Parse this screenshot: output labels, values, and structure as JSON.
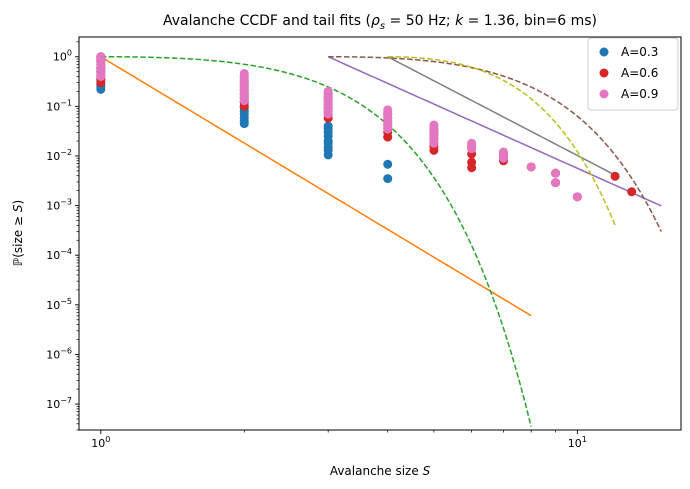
{
  "chart_data": {
    "type": "scatter",
    "title": "Avalanche CCDF and tail fits (ρ_s = 50 Hz; k = 1.36, bin=6 ms)",
    "title_parts": {
      "prefix": "Avalanche CCDF and tail fits (",
      "rho": "ρ",
      "rho_sub": "s",
      "rho_value": " = 50 Hz; ",
      "k": "k",
      "k_value": " = 1.36, bin=6 ms)"
    },
    "xlabel": "Avalanche size S",
    "xlabel_parts": {
      "text": "Avalanche size ",
      "var": "S"
    },
    "ylabel": "ℙ(size ≥ S)",
    "ylabel_parts": {
      "text": "ℙ(size ≥ ",
      "var": "S",
      "close": ")"
    },
    "xscale": "log",
    "yscale": "log",
    "xlim": [
      0.9,
      16.5
    ],
    "ylim": [
      3e-08,
      2.5
    ],
    "x_ticks": [
      {
        "value": 1,
        "base": "10",
        "exp": "0"
      },
      {
        "value": 10,
        "base": "10",
        "exp": "1"
      }
    ],
    "y_ticks": [
      {
        "value": 1e-07,
        "base": "10",
        "exp": "−7"
      },
      {
        "value": 1e-06,
        "base": "10",
        "exp": "−6"
      },
      {
        "value": 1e-05,
        "base": "10",
        "exp": "−5"
      },
      {
        "value": 0.0001,
        "base": "10",
        "exp": "−4"
      },
      {
        "value": 0.001,
        "base": "10",
        "exp": "−3"
      },
      {
        "value": 0.01,
        "base": "10",
        "exp": "−2"
      },
      {
        "value": 0.1,
        "base": "10",
        "exp": "−1"
      },
      {
        "value": 1,
        "base": "10",
        "exp": "0"
      }
    ],
    "legend_position": "top-right",
    "series": [
      {
        "name": "A=0.3",
        "color": "#1f77b4",
        "x": [
          1,
          1,
          1,
          1,
          1,
          1,
          1,
          1,
          1,
          1,
          1,
          1,
          1,
          1,
          2,
          2,
          2,
          2,
          2,
          2,
          2,
          2,
          2,
          2,
          2,
          2,
          3,
          3,
          3,
          3,
          3,
          3,
          3,
          3,
          3,
          4,
          4
        ],
        "y": [
          1.0,
          0.9,
          0.8,
          0.7,
          0.6,
          0.55,
          0.5,
          0.45,
          0.4,
          0.35,
          0.32,
          0.28,
          0.25,
          0.22,
          0.2,
          0.17,
          0.15,
          0.13,
          0.12,
          0.1,
          0.09,
          0.08,
          0.07,
          0.06,
          0.05,
          0.045,
          0.04,
          0.035,
          0.03,
          0.025,
          0.02,
          0.018,
          0.015,
          0.013,
          0.0105,
          0.0068,
          0.0035
        ]
      },
      {
        "name": "A=0.6",
        "color": "#d62728",
        "x": [
          1,
          1,
          1,
          1,
          1,
          1,
          1,
          1,
          1,
          2,
          2,
          2,
          2,
          2,
          2,
          2,
          2,
          2,
          3,
          3,
          3,
          3,
          3,
          3,
          3,
          3,
          4,
          4,
          4,
          4,
          4,
          4,
          4,
          5,
          5,
          5,
          5,
          5,
          5,
          5,
          6,
          6,
          6,
          6,
          7,
          7,
          7,
          8,
          9,
          9,
          10,
          12,
          13
        ],
        "y": [
          1.0,
          0.9,
          0.8,
          0.7,
          0.6,
          0.5,
          0.42,
          0.36,
          0.3,
          0.4,
          0.34,
          0.3,
          0.26,
          0.22,
          0.18,
          0.15,
          0.12,
          0.1,
          0.17,
          0.15,
          0.13,
          0.11,
          0.095,
          0.08,
          0.068,
          0.058,
          0.07,
          0.06,
          0.05,
          0.042,
          0.036,
          0.03,
          0.024,
          0.035,
          0.03,
          0.026,
          0.022,
          0.018,
          0.0155,
          0.013,
          0.015,
          0.011,
          0.0075,
          0.0058,
          0.011,
          0.0095,
          0.008,
          0.006,
          0.0045,
          0.0029,
          0.0015,
          0.0039,
          0.0019
        ]
      },
      {
        "name": "A=0.9",
        "color": "#e377c2",
        "x": [
          1,
          1,
          1,
          1,
          1,
          1,
          1,
          1,
          1,
          1,
          2,
          2,
          2,
          2,
          2,
          2,
          2,
          2,
          2,
          2,
          2,
          3,
          3,
          3,
          3,
          3,
          3,
          3,
          3,
          3,
          3,
          4,
          4,
          4,
          4,
          4,
          4,
          4,
          4,
          5,
          5,
          5,
          5,
          5,
          5,
          5,
          6,
          6,
          6,
          7,
          7,
          7,
          8,
          9,
          9,
          10
        ],
        "y": [
          1.0,
          0.92,
          0.85,
          0.78,
          0.7,
          0.63,
          0.56,
          0.5,
          0.45,
          0.4,
          0.46,
          0.42,
          0.38,
          0.34,
          0.3,
          0.27,
          0.24,
          0.21,
          0.18,
          0.15,
          0.13,
          0.2,
          0.18,
          0.16,
          0.14,
          0.125,
          0.11,
          0.1,
          0.09,
          0.08,
          0.07,
          0.085,
          0.076,
          0.068,
          0.06,
          0.053,
          0.047,
          0.041,
          0.035,
          0.042,
          0.037,
          0.032,
          0.028,
          0.024,
          0.021,
          0.018,
          0.018,
          0.016,
          0.014,
          0.012,
          0.0105,
          0.009,
          0.006,
          0.0045,
          0.0029,
          0.0015
        ]
      }
    ],
    "fit_lines": [
      {
        "name": "orange power-law fit",
        "color": "#ff7f0e",
        "style": "solid",
        "kind": "power",
        "xmin": 1,
        "xmax": 8,
        "A": 1.0,
        "alpha": 5.78
      },
      {
        "name": "green fit",
        "color": "#2ca02c",
        "style": "dashed",
        "kind": "curve",
        "xmin": 1,
        "xmax": 8,
        "y_at_xmin": 1.0,
        "y_at_xmax": 3.5e-08
      },
      {
        "name": "purple power-law fit",
        "color": "#9467bd",
        "style": "solid",
        "kind": "power",
        "xmin": 3,
        "xmax": 15,
        "A": 1.0,
        "alpha": 4.3
      },
      {
        "name": "brown fit",
        "color": "#8c564b",
        "style": "dashed",
        "kind": "curve",
        "xmin": 3,
        "xmax": 15,
        "y_at_xmin": 1.0,
        "y_at_xmax": 0.0003
      },
      {
        "name": "gray power-law fit",
        "color": "#7f7f7f",
        "style": "solid",
        "kind": "power",
        "xmin": 4,
        "xmax": 12,
        "A": 1.0,
        "alpha": 5.0
      },
      {
        "name": "olive fit",
        "color": "#bcbd22",
        "style": "dashed",
        "kind": "curve",
        "xmin": 4,
        "xmax": 12,
        "y_at_xmin": 1.0,
        "y_at_xmax": 0.0004
      }
    ]
  }
}
